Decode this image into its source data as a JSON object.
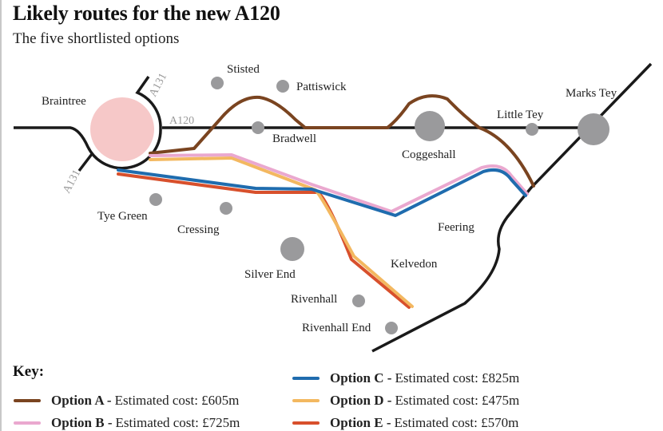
{
  "title": "Likely routes for the new A120",
  "subtitle": "The five shortlisted options",
  "roads": {
    "a120": "A120",
    "a131_north": "A131",
    "a131_south": "A131"
  },
  "places": {
    "braintree": "Braintree",
    "stisted": "Stisted",
    "pattiswick": "Pattiswick",
    "bradwell": "Bradwell",
    "coggeshall": "Coggeshall",
    "little_tey": "Little Tey",
    "marks_tey": "Marks Tey",
    "tye_green": "Tye Green",
    "cressing": "Cressing",
    "feering": "Feering",
    "kelvedon": "Kelvedon",
    "silver_end": "Silver End",
    "rivenhall": "Rivenhall",
    "rivenhall_end": "Rivenhall End"
  },
  "colors": {
    "option_a": "#7a4420",
    "option_b": "#eaa8cf",
    "option_c": "#1f6cae",
    "option_d": "#f3b860",
    "option_e": "#d8502c",
    "town": "#9a9a9c",
    "braintree": "#f6c8c8"
  },
  "key": {
    "title": "Key:",
    "items": [
      {
        "name": "Option A -",
        "desc": "Estimated cost: £605m"
      },
      {
        "name": "Option B -",
        "desc": "Estimated cost: £725m"
      },
      {
        "name": "Option C -",
        "desc": "Estimated cost: £825m"
      },
      {
        "name": "Option D -",
        "desc": "Estimated cost: £475m"
      },
      {
        "name": "Option E -",
        "desc": "Estimated cost: £570m"
      }
    ]
  }
}
